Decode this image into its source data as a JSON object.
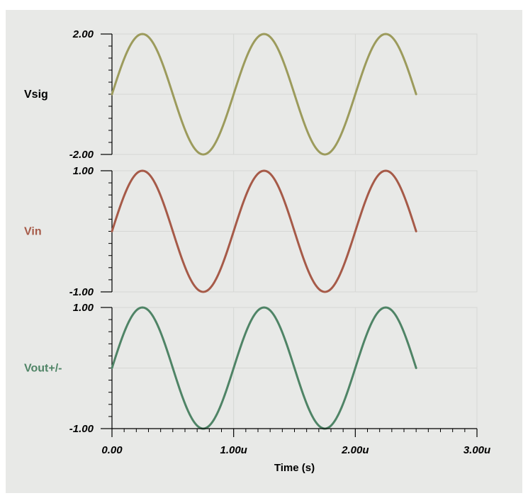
{
  "chart_data": {
    "type": "line",
    "xlabel": "Time (s)",
    "xlim": [
      0,
      3e-06
    ],
    "x_ticks": [
      {
        "value": 0,
        "label": "0.00"
      },
      {
        "value": 1e-06,
        "label": "1.00u"
      },
      {
        "value": 2e-06,
        "label": "2.00u"
      },
      {
        "value": 3e-06,
        "label": "3.00u"
      }
    ],
    "x_data_end": 2.5e-06,
    "frequency_hz": 1000000,
    "grid": true,
    "panels": [
      {
        "name": "Vsig",
        "color": "#9c9b5c",
        "amplitude": 2.0,
        "ylim": [
          -2,
          2
        ],
        "ytick_top": "2.00",
        "ytick_bottom": "-2.00"
      },
      {
        "name": "Vin",
        "color": "#a65a48",
        "amplitude": 1.0,
        "ylim": [
          -1,
          1
        ],
        "ytick_top": "1.00",
        "ytick_bottom": "-1.00"
      },
      {
        "name": "Vout+/-",
        "color": "#4f8466",
        "amplitude": 1.0,
        "ylim": [
          -1,
          1
        ],
        "ytick_top": "1.00",
        "ytick_bottom": "-1.00"
      }
    ]
  }
}
